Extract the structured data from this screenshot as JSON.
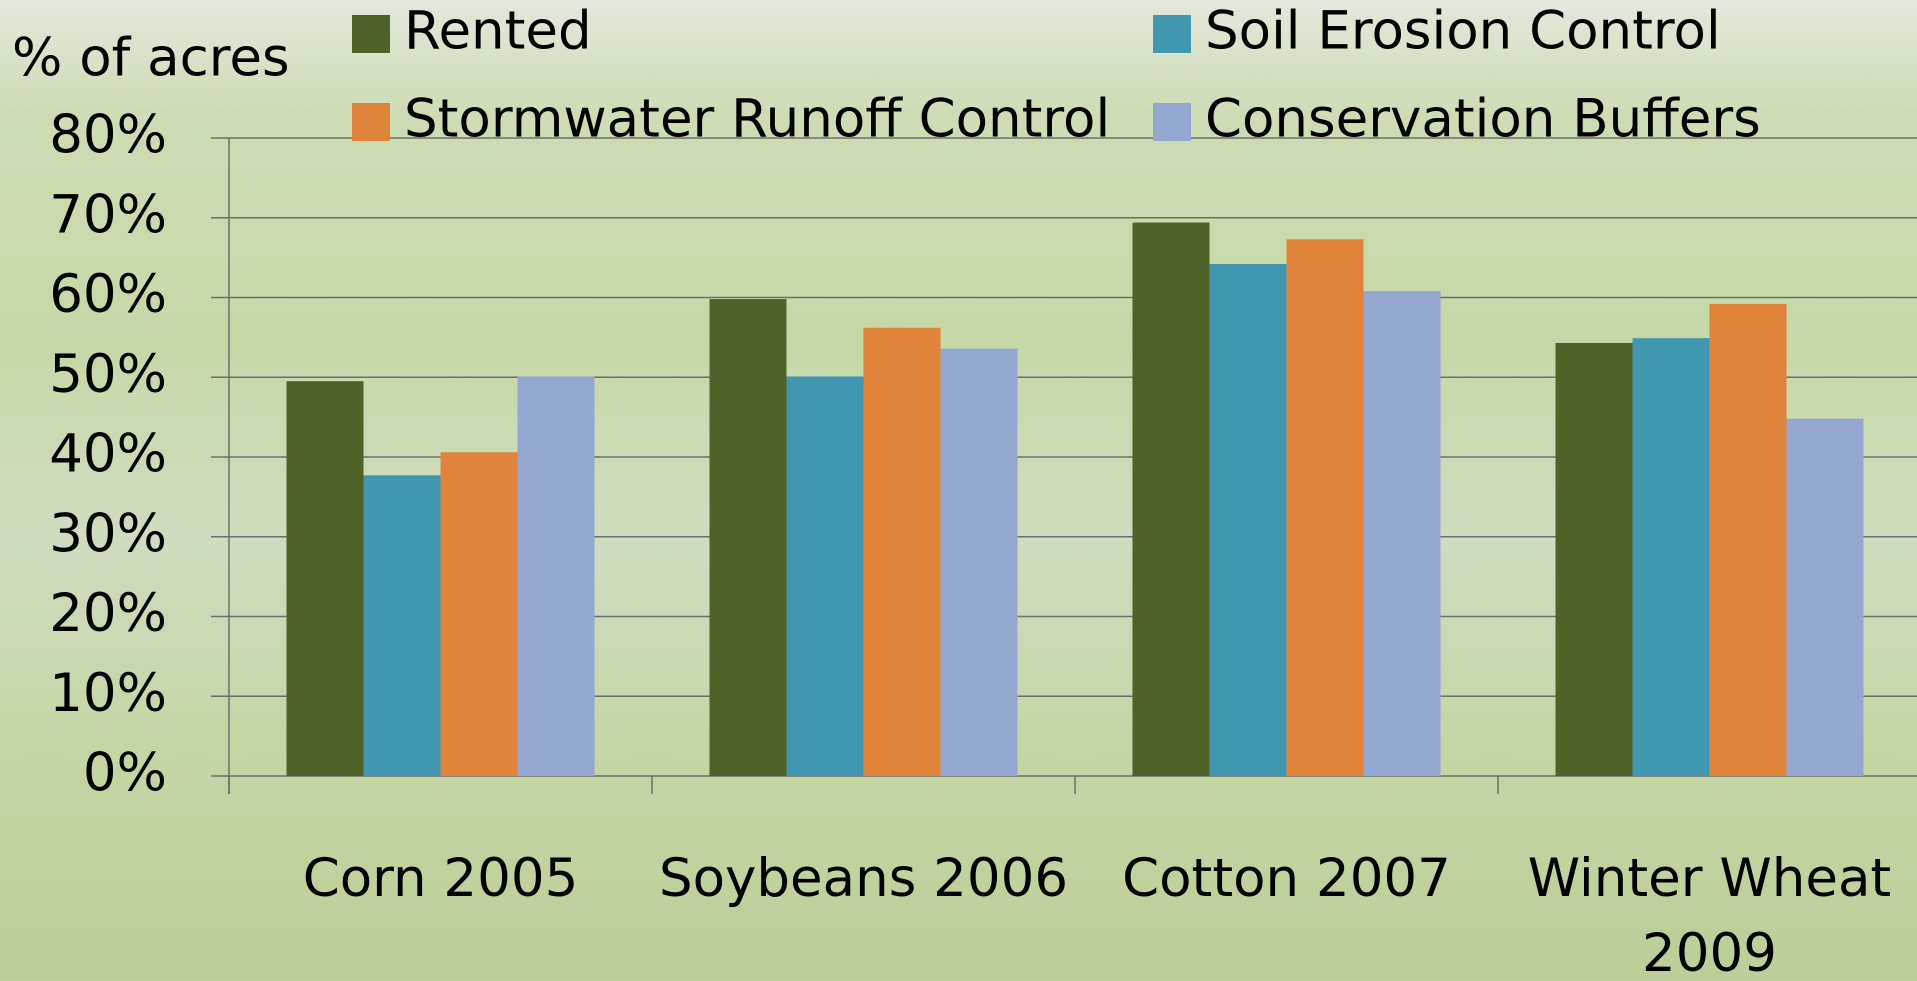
{
  "chart_data": {
    "type": "bar",
    "y_label": "% of acres",
    "categories": [
      "Corn 2005",
      "Soybeans 2006",
      "Cotton 2007",
      "Winter Wheat 2009"
    ],
    "series": [
      {
        "name": "Rented",
        "color": "#4f6228",
        "values": [
          49.5,
          59.8,
          69.4,
          54.3
        ]
      },
      {
        "name": "Soil Erosion Control",
        "color": "#4197b0",
        "values": [
          37.7,
          50.1,
          64.2,
          54.9
        ]
      },
      {
        "name": "Stormwater Runoff Control",
        "color": "#e0843c",
        "values": [
          40.6,
          56.2,
          67.3,
          59.2
        ]
      },
      {
        "name": "Conservation Buffers",
        "color": "#93a7d1",
        "values": [
          50.1,
          53.6,
          60.8,
          44.8
        ]
      }
    ],
    "ylim": [
      0,
      80
    ],
    "yticks": [
      {
        "value": 0,
        "label": "0%"
      },
      {
        "value": 10,
        "label": "10%"
      },
      {
        "value": 20,
        "label": "20%"
      },
      {
        "value": 30,
        "label": "30%"
      },
      {
        "value": 40,
        "label": "40%"
      },
      {
        "value": 50,
        "label": "50%"
      },
      {
        "value": 60,
        "label": "60%"
      },
      {
        "value": 70,
        "label": "70%"
      },
      {
        "value": 80,
        "label": "80%"
      }
    ],
    "grid": true
  }
}
